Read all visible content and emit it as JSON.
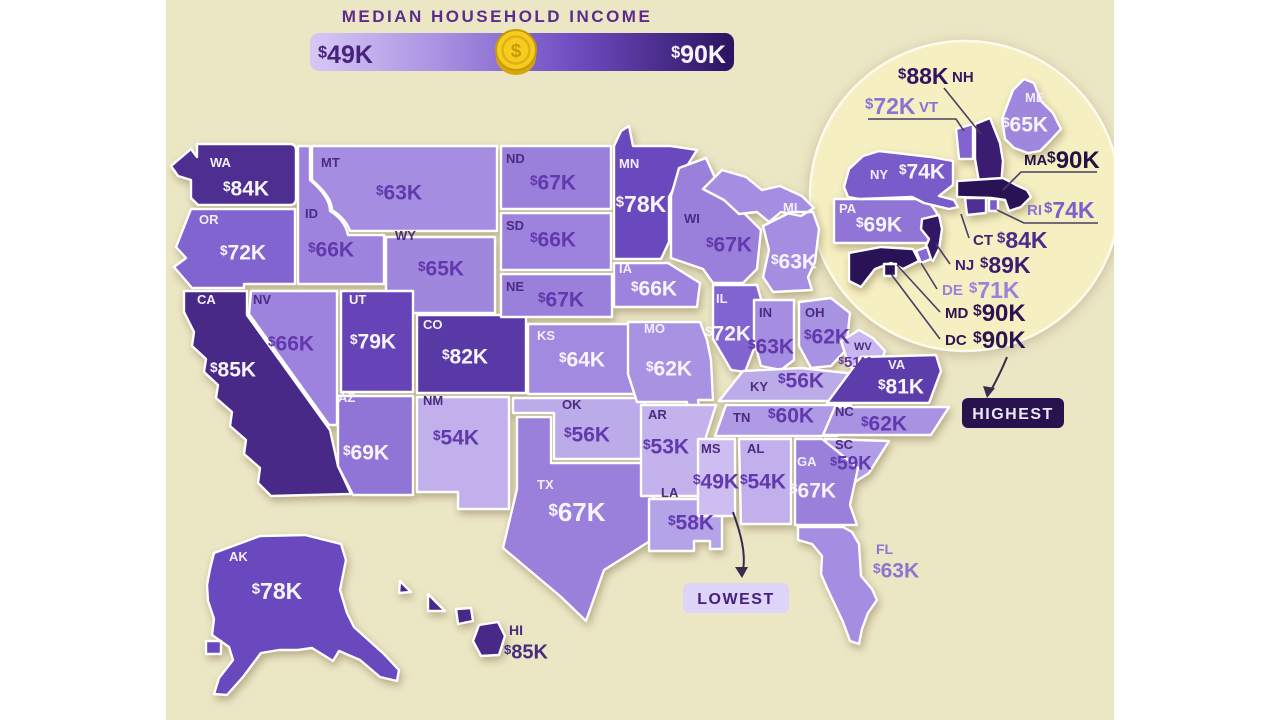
{
  "title": "MEDIAN HOUSEHOLD INCOME",
  "labels": {
    "dollar": "$"
  },
  "legend": {
    "min_val": "49K",
    "max_val": "90K",
    "min_value": 49,
    "max_value": 90
  },
  "badges": {
    "highest": "HIGHEST",
    "lowest": "LOWEST"
  },
  "color_scale": {
    "stops": [
      [
        49,
        "#cdbdf1"
      ],
      [
        53,
        "#c3b2ec"
      ],
      [
        56,
        "#bcabe9"
      ],
      [
        60,
        "#ae9ae5"
      ],
      [
        63,
        "#a58ee1"
      ],
      [
        67,
        "#9a7fdb"
      ],
      [
        72,
        "#8164cf"
      ],
      [
        78,
        "#6a48bd"
      ],
      [
        82,
        "#5939a6"
      ],
      [
        85,
        "#482987"
      ],
      [
        88,
        "#3a1d71"
      ],
      [
        90,
        "#2a1257"
      ]
    ]
  },
  "chart_data": {
    "type": "choropleth",
    "title": "MEDIAN HOUSEHOLD INCOME",
    "unit": "USD thousands (median household income)",
    "region": "United States by state including DC",
    "range": {
      "min": 49,
      "max": 90
    },
    "highest_states": [
      "MA",
      "MD",
      "DC"
    ],
    "lowest_state": "MS",
    "states": {
      "WA": {
        "abbr": "WA",
        "value": 84,
        "val": "84K"
      },
      "OR": {
        "abbr": "OR",
        "value": 72,
        "val": "72K"
      },
      "CA": {
        "abbr": "CA",
        "value": 85,
        "val": "85K"
      },
      "NV": {
        "abbr": "NV",
        "value": 66,
        "val": "66K"
      },
      "ID": {
        "abbr": "ID",
        "value": 66,
        "val": "66K"
      },
      "MT": {
        "abbr": "MT",
        "value": 63,
        "val": "63K"
      },
      "WY": {
        "abbr": "WY",
        "value": 65,
        "val": "65K"
      },
      "UT": {
        "abbr": "UT",
        "value": 79,
        "val": "79K"
      },
      "CO": {
        "abbr": "CO",
        "value": 82,
        "val": "82K"
      },
      "AZ": {
        "abbr": "AZ",
        "value": 69,
        "val": "69K"
      },
      "NM": {
        "abbr": "NM",
        "value": 54,
        "val": "54K"
      },
      "ND": {
        "abbr": "ND",
        "value": 67,
        "val": "67K"
      },
      "SD": {
        "abbr": "SD",
        "value": 66,
        "val": "66K"
      },
      "NE": {
        "abbr": "NE",
        "value": 67,
        "val": "67K"
      },
      "KS": {
        "abbr": "KS",
        "value": 64,
        "val": "64K"
      },
      "OK": {
        "abbr": "OK",
        "value": 56,
        "val": "56K"
      },
      "TX": {
        "abbr": "TX",
        "value": 67,
        "val": "67K"
      },
      "MN": {
        "abbr": "MN",
        "value": 78,
        "val": "78K"
      },
      "IA": {
        "abbr": "IA",
        "value": 66,
        "val": "66K"
      },
      "MO": {
        "abbr": "MO",
        "value": 62,
        "val": "62K"
      },
      "AR": {
        "abbr": "AR",
        "value": 53,
        "val": "53K"
      },
      "LA": {
        "abbr": "LA",
        "value": 58,
        "val": "58K"
      },
      "WI": {
        "abbr": "WI",
        "value": 67,
        "val": "67K"
      },
      "MI": {
        "abbr": "MI",
        "value": 63,
        "val": "63K"
      },
      "IL": {
        "abbr": "IL",
        "value": 72,
        "val": "72K"
      },
      "IN": {
        "abbr": "IN",
        "value": 63,
        "val": "63K"
      },
      "OH": {
        "abbr": "OH",
        "value": 62,
        "val": "62K"
      },
      "KY": {
        "abbr": "KY",
        "value": 56,
        "val": "56K"
      },
      "TN": {
        "abbr": "TN",
        "value": 60,
        "val": "60K"
      },
      "MS": {
        "abbr": "MS",
        "value": 49,
        "val": "49K"
      },
      "AL": {
        "abbr": "AL",
        "value": 54,
        "val": "54K"
      },
      "GA": {
        "abbr": "GA",
        "value": 67,
        "val": "67K"
      },
      "FL": {
        "abbr": "FL",
        "value": 63,
        "val": "63K"
      },
      "SC": {
        "abbr": "SC",
        "value": 59,
        "val": "59K"
      },
      "NC": {
        "abbr": "NC",
        "value": 62,
        "val": "62K"
      },
      "VA": {
        "abbr": "VA",
        "value": 81,
        "val": "81K"
      },
      "WV": {
        "abbr": "WV",
        "value": 51,
        "val": "51K"
      },
      "PA": {
        "abbr": "PA",
        "value": 69,
        "val": "69K"
      },
      "NY": {
        "abbr": "NY",
        "value": 74,
        "val": "74K"
      },
      "VT": {
        "abbr": "VT",
        "value": 72,
        "val": "72K"
      },
      "NH": {
        "abbr": "NH",
        "value": 88,
        "val": "88K"
      },
      "ME": {
        "abbr": "ME",
        "value": 65,
        "val": "65K"
      },
      "MA": {
        "abbr": "MA",
        "value": 90,
        "val": "90K"
      },
      "RI": {
        "abbr": "RI",
        "value": 74,
        "val": "74K"
      },
      "CT": {
        "abbr": "CT",
        "value": 84,
        "val": "84K"
      },
      "NJ": {
        "abbr": "NJ",
        "value": 89,
        "val": "89K"
      },
      "DE": {
        "abbr": "DE",
        "value": 71,
        "val": "71K"
      },
      "MD": {
        "abbr": "MD",
        "value": 90,
        "val": "90K"
      },
      "DC": {
        "abbr": "DC",
        "value": 90,
        "val": "90K"
      },
      "AK": {
        "abbr": "AK",
        "value": 78,
        "val": "78K"
      },
      "HI": {
        "abbr": "HI",
        "value": 85,
        "val": "85K"
      }
    }
  }
}
